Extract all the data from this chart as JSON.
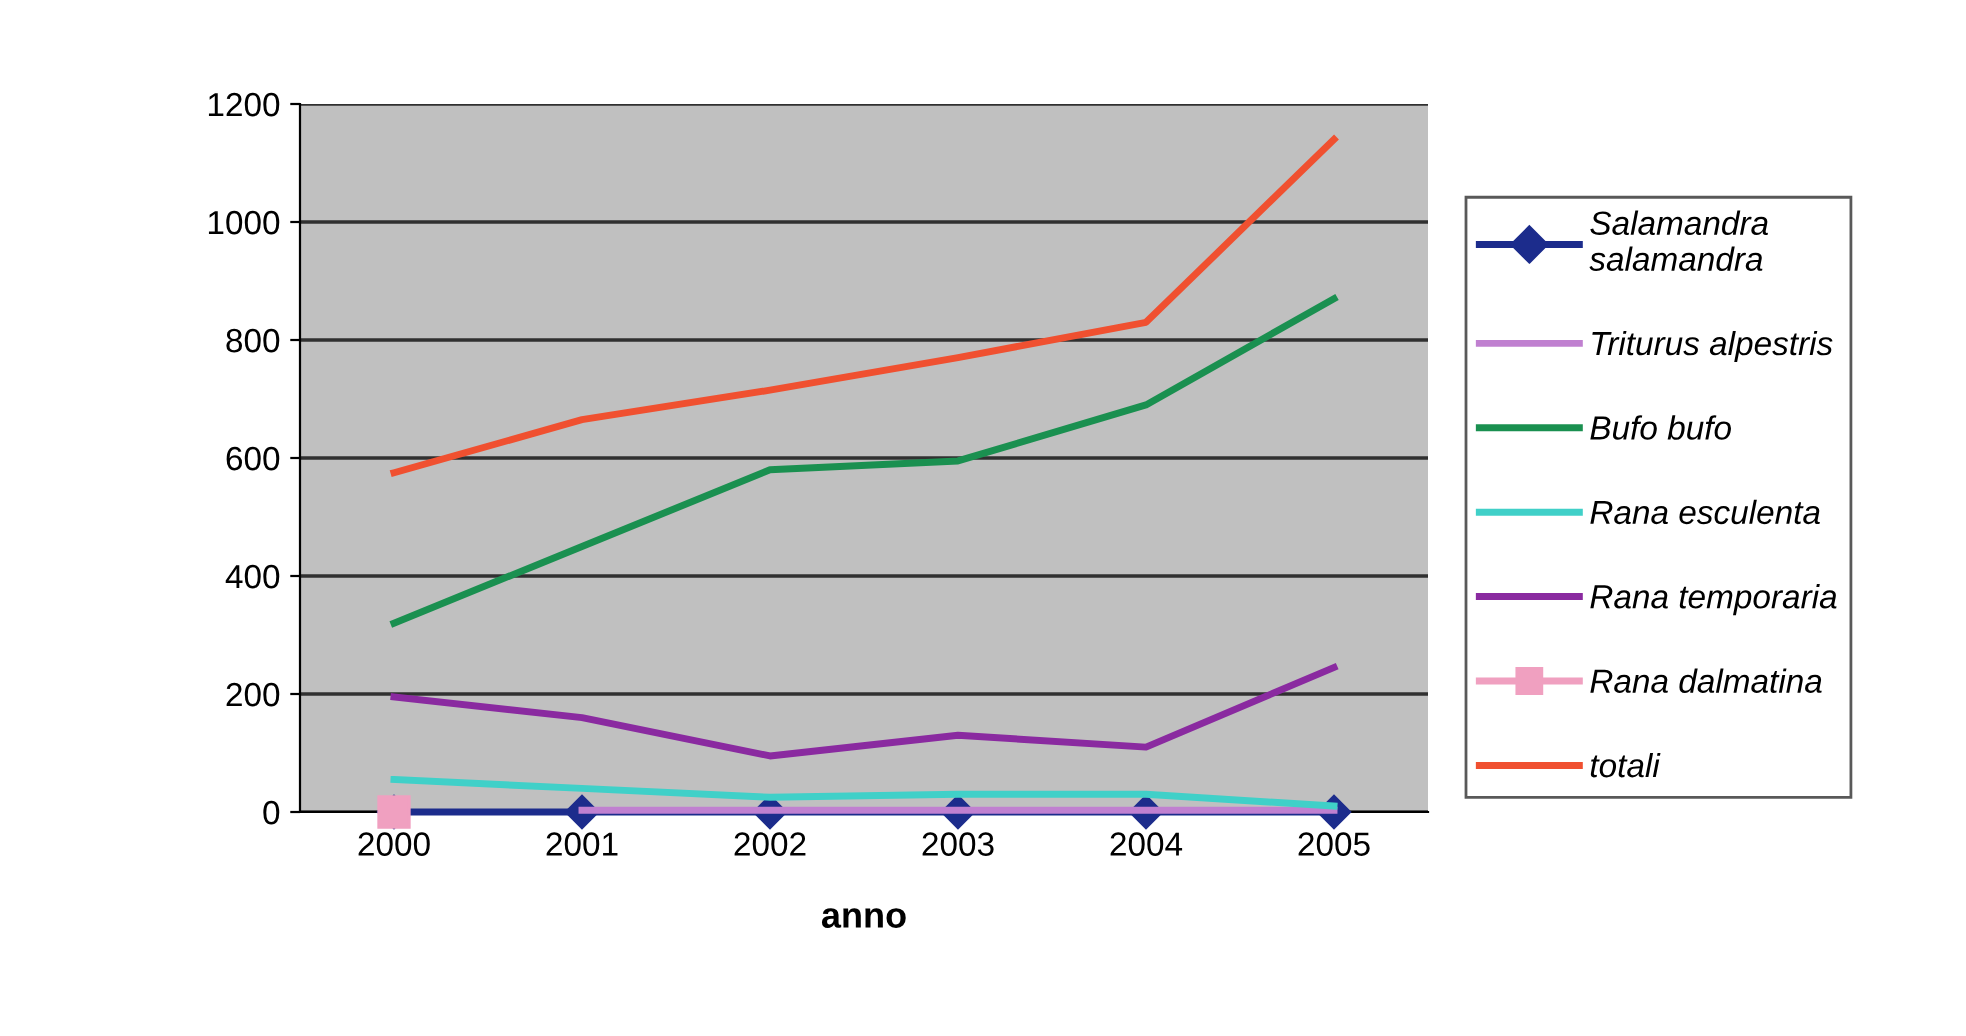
{
  "chart_data": {
    "type": "line",
    "xlabel": "anno",
    "categories": [
      "2000",
      "2001",
      "2002",
      "2003",
      "2004",
      "2005"
    ],
    "series": [
      {
        "name": "Salamandra salamandra",
        "color": "#1c2c8c",
        "marker": "diamond",
        "values": [
          0,
          0,
          0,
          0,
          0,
          0
        ]
      },
      {
        "name": "Triturus alpestris",
        "color": "#c080d0",
        "values": [
          null,
          3,
          3,
          3,
          3,
          3
        ]
      },
      {
        "name": "Bufo bufo",
        "color": "#1a9050",
        "values": [
          320,
          450,
          580,
          595,
          690,
          870
        ]
      },
      {
        "name": "Rana esculenta",
        "color": "#40d0c8",
        "values": [
          55,
          40,
          25,
          30,
          30,
          10
        ]
      },
      {
        "name": "Rana temporaria",
        "color": "#8a2aa0",
        "values": [
          195,
          160,
          95,
          130,
          110,
          245
        ]
      },
      {
        "name": "Rana dalmatina",
        "color": "#f0a0c0",
        "marker": "square",
        "values": [
          0,
          null,
          null,
          null,
          null,
          null
        ]
      },
      {
        "name": "totali",
        "color": "#f05030",
        "values": [
          575,
          665,
          715,
          770,
          830,
          1140
        ]
      }
    ],
    "ylim": [
      0,
      1200
    ],
    "yticks": [
      0,
      200,
      400,
      600,
      800,
      1000,
      1200
    ],
    "grid": "y",
    "legend": "right",
    "marker": "none",
    "line_style": "solid"
  }
}
